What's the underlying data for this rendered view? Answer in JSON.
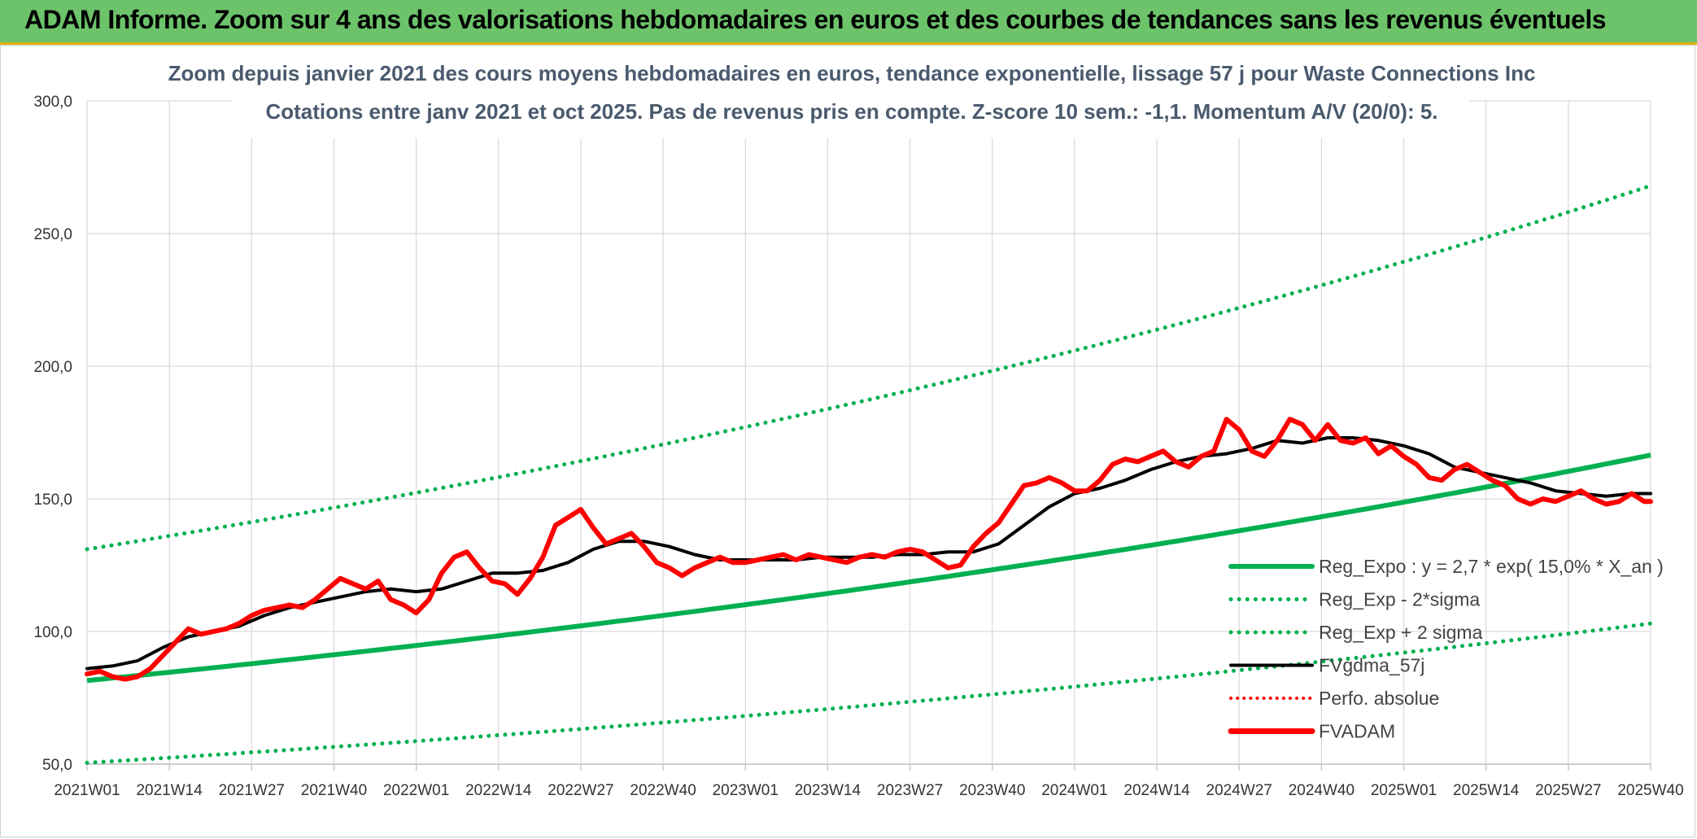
{
  "banner": {
    "title": "ADAM Informe. Zoom sur 4 ans des valorisations hebdomadaires en euros et des courbes de tendances sans les revenus éventuels"
  },
  "chart_data": {
    "type": "line",
    "title": "Zoom depuis janvier 2021 des cours moyens hebdomadaires en euros, tendance exponentielle, lissage 57 j pour Waste Connections Inc",
    "subtitle": "Cotations entre janv 2021 et oct 2025. Pas de revenus pris en compte. Z-score 10 sem.: -1,1. Momentum A/V (20/0): 5.",
    "ylim": [
      50,
      300
    ],
    "y_ticks": [
      "50,0",
      "100,0",
      "150,0",
      "200,0",
      "250,0",
      "300,0"
    ],
    "y_tick_values": [
      50,
      100,
      150,
      200,
      250,
      300
    ],
    "x_ticks": [
      "2021W01",
      "2021W14",
      "2021W27",
      "2021W40",
      "2022W01",
      "2022W14",
      "2022W27",
      "2022W40",
      "2023W01",
      "2023W14",
      "2023W27",
      "2023W40",
      "2024W01",
      "2024W14",
      "2024W27",
      "2024W40",
      "2025W01",
      "2025W14",
      "2025W27",
      "2025W40"
    ],
    "x_range_weeks": [
      0,
      247
    ],
    "colors": {
      "reg": "#00b050",
      "fvgdma": "#000000",
      "fvadam": "#ff0000",
      "perfo": "#ff0000"
    },
    "legend": [
      {
        "name": "Reg_Expo : y = 2,7 * exp( 15,0% *  X_an )",
        "style": "solid-green"
      },
      {
        "name": "Reg_Exp - 2*sigma",
        "style": "dotted-green"
      },
      {
        "name": "Reg_Exp + 2 sigma",
        "style": "dotted-green"
      },
      {
        "name": "FVgdma_57j",
        "style": "solid-black"
      },
      {
        "name": "Perfo. absolue",
        "style": "dotted-red"
      },
      {
        "name": "FVADAM",
        "style": "thick-red"
      }
    ],
    "series": [
      {
        "name": "Reg_Expo",
        "x": [
          0,
          247
        ],
        "start": 81.5,
        "end": 166.5,
        "kind": "exp"
      },
      {
        "name": "Reg_Exp - 2*sigma",
        "x": [
          0,
          247
        ],
        "start": 50.5,
        "end": 103,
        "kind": "exp"
      },
      {
        "name": "Reg_Exp + 2 sigma",
        "x": [
          0,
          247
        ],
        "start": 131,
        "end": 268,
        "kind": "exp"
      },
      {
        "name": "FVgdma_57j",
        "x": [
          0,
          4,
          8,
          12,
          16,
          20,
          24,
          28,
          32,
          36,
          40,
          44,
          48,
          52,
          56,
          60,
          64,
          68,
          72,
          76,
          80,
          84,
          88,
          92,
          96,
          100,
          104,
          108,
          112,
          116,
          120,
          124,
          128,
          132,
          136,
          140,
          144,
          148,
          152,
          156,
          160,
          164,
          168,
          172,
          176,
          180,
          184,
          188,
          192,
          196,
          200,
          204,
          208,
          212,
          216,
          220,
          224,
          228,
          232,
          236,
          240,
          244,
          247
        ],
        "y": [
          86,
          87,
          89,
          94,
          98,
          100,
          102,
          106,
          109,
          111,
          113,
          115,
          116,
          115,
          116,
          119,
          122,
          122,
          123,
          126,
          131,
          134,
          134,
          132,
          129,
          127,
          127,
          127,
          127,
          128,
          128,
          128,
          129,
          129,
          130,
          130,
          133,
          140,
          147,
          152,
          154,
          157,
          161,
          164,
          166,
          167,
          169,
          172,
          171,
          173,
          173,
          172,
          170,
          167,
          162,
          160,
          158,
          156,
          153,
          152,
          151,
          152,
          152
        ]
      },
      {
        "name": "FVADAM",
        "x": [
          0,
          2,
          4,
          6,
          8,
          10,
          12,
          14,
          16,
          18,
          20,
          22,
          24,
          26,
          28,
          30,
          32,
          34,
          36,
          38,
          40,
          42,
          44,
          46,
          48,
          50,
          52,
          54,
          56,
          58,
          60,
          62,
          64,
          66,
          68,
          70,
          72,
          74,
          76,
          78,
          80,
          82,
          84,
          86,
          88,
          90,
          92,
          94,
          96,
          98,
          100,
          102,
          104,
          106,
          108,
          110,
          112,
          114,
          116,
          118,
          120,
          122,
          124,
          126,
          128,
          130,
          132,
          134,
          136,
          138,
          140,
          142,
          144,
          146,
          148,
          150,
          152,
          154,
          156,
          158,
          160,
          162,
          164,
          166,
          168,
          170,
          172,
          174,
          176,
          178,
          180,
          182,
          184,
          186,
          188,
          190,
          192,
          194,
          196,
          198,
          200,
          202,
          204,
          206,
          208,
          210,
          212,
          214,
          216,
          218,
          220,
          222,
          224,
          226,
          228,
          230,
          232,
          234,
          236,
          238,
          240,
          242,
          244,
          246,
          247
        ],
        "y": [
          84,
          85,
          83,
          82,
          83,
          86,
          91,
          96,
          101,
          99,
          100,
          101,
          103,
          106,
          108,
          109,
          110,
          109,
          112,
          116,
          120,
          118,
          116,
          119,
          112,
          110,
          107,
          112,
          122,
          128,
          130,
          124,
          119,
          118,
          114,
          120,
          128,
          140,
          143,
          146,
          139,
          133,
          135,
          137,
          132,
          126,
          124,
          121,
          124,
          126,
          128,
          126,
          126,
          127,
          128,
          129,
          127,
          129,
          128,
          127,
          126,
          128,
          129,
          128,
          130,
          131,
          130,
          127,
          124,
          125,
          132,
          137,
          141,
          148,
          155,
          156,
          158,
          156,
          153,
          153,
          157,
          163,
          165,
          164,
          166,
          168,
          164,
          162,
          166,
          168,
          180,
          176,
          168,
          166,
          172,
          180,
          178,
          172,
          178,
          172,
          171,
          173,
          167,
          170,
          166,
          163,
          158,
          157,
          161,
          163,
          160,
          157,
          155,
          150,
          148,
          150,
          149,
          151,
          153,
          150,
          148,
          149,
          152,
          149,
          149
        ]
      }
    ]
  }
}
